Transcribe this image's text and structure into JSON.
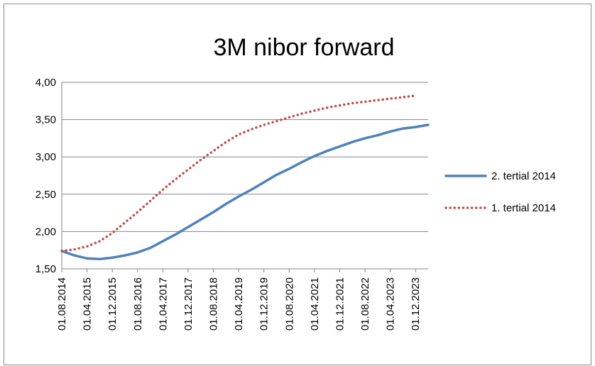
{
  "chart_data": {
    "type": "line",
    "title": "3M nibor forward",
    "xlabel": "",
    "ylabel": "",
    "ylim": [
      1.5,
      4.0
    ],
    "y_ticks": [
      "4,00",
      "3,50",
      "3,00",
      "2,50",
      "2,00",
      "1,50"
    ],
    "y_tick_values": [
      4.0,
      3.5,
      3.0,
      2.5,
      2.0,
      1.5
    ],
    "grid": "horizontal",
    "legend_position": "right",
    "x_tick_labels": [
      "01.08.2014",
      "01.04.2015",
      "01.12.2015",
      "01.08.2016",
      "01.04.2017",
      "01.12.2017",
      "01.08.2018",
      "01.04.2019",
      "01.12.2019",
      "01.08.2020",
      "01.04.2021",
      "01.12.2021",
      "01.08.2022",
      "01.04.2023",
      "01.12.2023"
    ],
    "series": [
      {
        "name": "2. tertial 2014",
        "color": "#4F81BD",
        "style": "solid",
        "x": [
          "2014-08-01",
          "2014-12-01",
          "2015-04-01",
          "2015-08-01",
          "2015-12-01",
          "2016-04-01",
          "2016-08-01",
          "2016-12-01",
          "2017-04-01",
          "2017-08-01",
          "2017-12-01",
          "2018-04-01",
          "2018-08-01",
          "2018-12-01",
          "2019-04-01",
          "2019-08-01",
          "2019-12-01",
          "2020-04-01",
          "2020-08-01",
          "2020-12-01",
          "2021-04-01",
          "2021-08-01",
          "2021-12-01",
          "2022-04-01",
          "2022-08-01",
          "2022-12-01",
          "2023-04-01",
          "2023-08-01",
          "2023-12-01",
          "2024-04-01"
        ],
        "values": [
          1.74,
          1.68,
          1.64,
          1.63,
          1.65,
          1.68,
          1.72,
          1.78,
          1.87,
          1.96,
          2.06,
          2.16,
          2.26,
          2.37,
          2.47,
          2.56,
          2.66,
          2.76,
          2.84,
          2.93,
          3.01,
          3.08,
          3.14,
          3.2,
          3.25,
          3.29,
          3.34,
          3.38,
          3.4,
          3.43
        ]
      },
      {
        "name": "1. tertial 2014",
        "color": "#C0504D",
        "style": "dotted",
        "x": [
          "2014-08-01",
          "2014-12-01",
          "2015-04-01",
          "2015-08-01",
          "2015-12-01",
          "2016-04-01",
          "2016-08-01",
          "2016-12-01",
          "2017-04-01",
          "2017-08-01",
          "2017-12-01",
          "2018-04-01",
          "2018-08-01",
          "2018-12-01",
          "2019-04-01",
          "2019-08-01",
          "2019-12-01",
          "2020-04-01",
          "2020-08-01",
          "2020-12-01",
          "2021-04-01",
          "2021-08-01",
          "2021-12-01",
          "2022-04-01",
          "2022-08-01",
          "2022-12-01",
          "2023-04-01",
          "2023-08-01",
          "2023-12-01"
        ],
        "values": [
          1.74,
          1.76,
          1.8,
          1.87,
          1.98,
          2.12,
          2.26,
          2.41,
          2.56,
          2.7,
          2.83,
          2.96,
          3.08,
          3.2,
          3.3,
          3.37,
          3.43,
          3.48,
          3.53,
          3.58,
          3.62,
          3.66,
          3.69,
          3.72,
          3.74,
          3.76,
          3.78,
          3.8,
          3.82
        ]
      }
    ]
  }
}
